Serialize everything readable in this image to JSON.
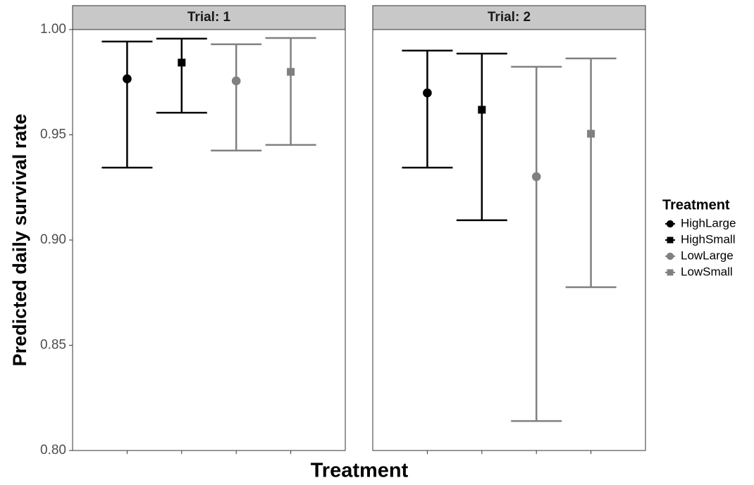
{
  "chart_data": {
    "type": "errorbar",
    "ylabel": "Predicted daily survival rate",
    "xlabel": "Treatment",
    "legend_title": "Treatment",
    "panels": [
      "Trial: 1",
      "Trial: 2"
    ],
    "ylim": [
      0.8,
      1.0
    ],
    "yticks": [
      {
        "value": 0.8,
        "label": "0.80"
      },
      {
        "value": 0.85,
        "label": "0.85"
      },
      {
        "value": 0.9,
        "label": "0.90"
      },
      0.95,
      {
        "value": 1.0,
        "label": "1.00"
      }
    ],
    "series": [
      {
        "name": "HighLarge",
        "color": "#000000",
        "marker": "circle",
        "values": [
          0.9766,
          0.9699
        ],
        "lower": [
          0.9344,
          0.9344
        ],
        "upper": [
          0.9943,
          0.99
        ]
      },
      {
        "name": "HighSmall",
        "color": "#000000",
        "marker": "square",
        "values": [
          0.9843,
          0.9619
        ],
        "lower": [
          0.9605,
          0.9094
        ],
        "upper": [
          0.9957,
          0.9886
        ]
      },
      {
        "name": "LowLarge",
        "color": "#808080",
        "marker": "circle",
        "values": [
          0.9756,
          0.9301
        ],
        "lower": [
          0.9425,
          0.814
        ],
        "upper": [
          0.993,
          0.9823
        ]
      },
      {
        "name": "LowSmall",
        "color": "#808080",
        "marker": "square",
        "values": [
          0.9799,
          0.9505
        ],
        "lower": [
          0.9452,
          0.8776
        ],
        "upper": [
          0.996,
          0.9863
        ]
      }
    ]
  }
}
